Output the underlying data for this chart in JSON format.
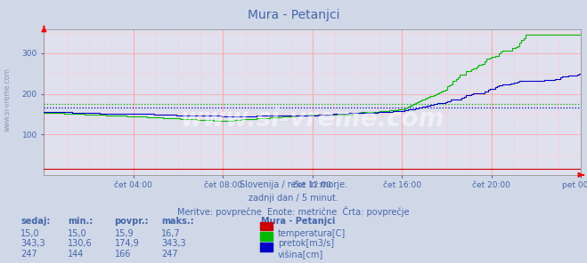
{
  "title": "Mura - Petanjci",
  "bg_color": "#d0d8e8",
  "plot_bg_color": "#e0e0ee",
  "text_color": "#4466aa",
  "watermark": "www.si-vreme.com",
  "subtitle1": "Slovenija / reke in morje.",
  "subtitle2": "zadnji dan / 5 minut.",
  "subtitle3": "Meritve: povprečne  Enote: metrične  Črta: povprečje",
  "xlim": [
    0,
    288
  ],
  "ylim": [
    0,
    360
  ],
  "yticks": [
    100,
    200,
    300
  ],
  "xtick_labels": [
    "čet 04:00",
    "čet 08:00",
    "čet 12:00",
    "čet 16:00",
    "čet 20:00",
    "pet 00:00"
  ],
  "xtick_positions": [
    48,
    96,
    144,
    192,
    240,
    288
  ],
  "avg_pretok": 174.9,
  "avg_visina": 166,
  "table_headers": [
    "sedaj:",
    "min.:",
    "povpr.:",
    "maks.:"
  ],
  "table_col1": [
    "15,0",
    "343,3",
    "247"
  ],
  "table_col2": [
    "15,0",
    "130,6",
    "144"
  ],
  "table_col3": [
    "15,9",
    "174,9",
    "166"
  ],
  "table_col4": [
    "16,7",
    "343,3",
    "247"
  ],
  "legend_title": "Mura - Petanjci",
  "legend_items": [
    "temperatura[C]",
    "pretok[m3/s]",
    "višina[cm]"
  ],
  "legend_colors": [
    "#cc0000",
    "#00bb00",
    "#0000cc"
  ]
}
